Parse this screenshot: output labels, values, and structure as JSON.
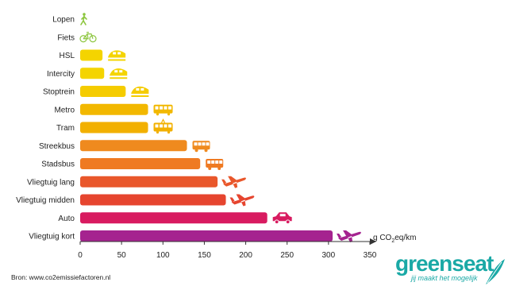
{
  "chart_data": {
    "type": "bar",
    "orientation": "horizontal",
    "categories": [
      "Lopen",
      "Fiets",
      "HSL",
      "Intercity",
      "Stoptrein",
      "Metro",
      "Tram",
      "Streekbus",
      "Stadsbus",
      "Vliegtuig lang",
      "Vliegtuig midden",
      "Auto",
      "Vliegtuig kort"
    ],
    "values": [
      0,
      0,
      27,
      29,
      55,
      82,
      82,
      129,
      145,
      166,
      176,
      226,
      305
    ],
    "colors": [
      "#8dc63f",
      "#8dc63f",
      "#f4d400",
      "#f4d400",
      "#f5cc00",
      "#f2b800",
      "#f2b000",
      "#ef8a1e",
      "#ef7a22",
      "#e9572b",
      "#e6452f",
      "#d81b60",
      "#a5238f"
    ],
    "icons": [
      "walk-icon",
      "bicycle-icon",
      "train-icon",
      "train-icon",
      "train-icon",
      "metro-icon",
      "tram-icon",
      "bus-icon",
      "bus-icon",
      "plane-icon",
      "plane-icon",
      "car-icon",
      "plane-icon"
    ],
    "x_ticks": [
      "0",
      "50",
      "100",
      "150",
      "200",
      "250",
      "300",
      "350"
    ],
    "xlim": [
      0,
      350
    ],
    "xlabel_prefix": "g CO",
    "xlabel_sub": "2",
    "xlabel_suffix": "eq/km",
    "grid": false
  },
  "source_text": "Bron: www.co2emissiefactoren.nl",
  "logo": {
    "word": "greenseat",
    "tagline": "jij maakt het mogelijk"
  }
}
